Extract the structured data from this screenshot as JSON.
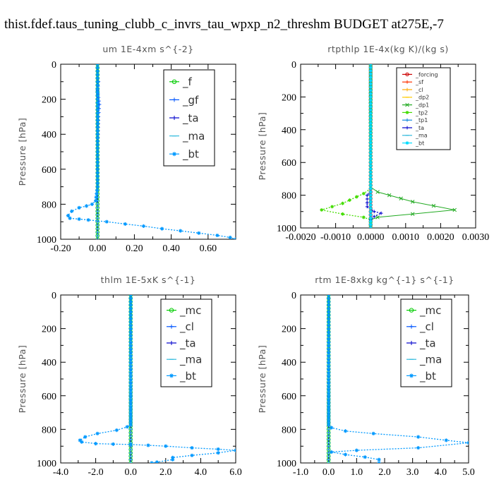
{
  "title": "thist.fdef.taus_tuning_clubb_c_invrs_tau_wpxp_n2_threshm  BUDGET at275E,-7",
  "chart_data": [
    {
      "type": "line",
      "title": "um   1E-4xm  s^{-2}",
      "ylabel": "Pressure [hPa]",
      "xlim": [
        -0.2,
        0.75
      ],
      "xticks": [
        -0.2,
        0.0,
        0.2,
        0.4,
        0.6
      ],
      "xtick_labels": [
        "-0.20",
        "0.00",
        "0.20",
        "0.40",
        "0.60"
      ],
      "ylim": [
        0,
        1000
      ],
      "yticks": [
        0,
        200,
        400,
        600,
        800,
        1000
      ],
      "ytick_labels": [
        "0",
        "200",
        "400",
        "600",
        "800",
        "1000"
      ],
      "legend_position": "top-right",
      "legend_font": 15,
      "series": [
        {
          "name": "_f",
          "color": "#00cc00",
          "marker": "o",
          "x": [
            0.0,
            0.0,
            0.0,
            0.0,
            0.0,
            0.0
          ],
          "y": [
            0,
            200,
            400,
            600,
            800,
            1000
          ]
        },
        {
          "name": "_gf",
          "color": "#0055ff",
          "marker": "+",
          "x": [
            0.005,
            0.0,
            0.01,
            0.005,
            0.0,
            0.0
          ],
          "y": [
            100,
            150,
            230,
            300,
            500,
            800
          ]
        },
        {
          "name": "_ta",
          "color": "#0000cc",
          "marker": "+",
          "x": [
            0.0,
            0.0,
            0.0,
            0.0,
            0.0
          ],
          "y": [
            0,
            300,
            600,
            800,
            1000
          ]
        },
        {
          "name": "_ma",
          "color": "#33bbdd",
          "marker": "-",
          "x": [
            0.0,
            0.0,
            0.0,
            0.0,
            0.0
          ],
          "y": [
            0,
            300,
            600,
            800,
            1000
          ]
        },
        {
          "name": "_bt",
          "color": "#0099ff",
          "marker": "*",
          "x": [
            0.0,
            0.0,
            0.0,
            -0.01,
            -0.03,
            -0.06,
            -0.1,
            -0.14,
            -0.16,
            -0.15,
            -0.1,
            -0.05,
            0.05,
            0.15,
            0.25,
            0.35,
            0.45,
            0.55,
            0.65,
            0.72,
            0.75
          ],
          "y": [
            0,
            400,
            700,
            780,
            800,
            810,
            820,
            840,
            865,
            880,
            885,
            890,
            900,
            913,
            925,
            940,
            952,
            965,
            978,
            990,
            1000
          ]
        }
      ]
    },
    {
      "type": "line",
      "title": "rtpthlp   1E-4x(kg K)/(kg s)",
      "ylabel": "Pressure [hPa]",
      "xlim": [
        -0.002,
        0.003
      ],
      "xticks": [
        -0.002,
        -0.001,
        0.0,
        0.001,
        0.002,
        0.003
      ],
      "xtick_labels": [
        "-0.0020",
        "-0.0010",
        "0.0000",
        "0.0010",
        "0.0020",
        "0.0030"
      ],
      "ylim": [
        0,
        1000
      ],
      "yticks": [
        0,
        200,
        400,
        600,
        800,
        1000
      ],
      "ytick_labels": [
        "0",
        "200",
        "400",
        "600",
        "800",
        "1000"
      ],
      "legend_position": "top-right",
      "legend_font": 8,
      "series": [
        {
          "name": "_forcing",
          "color": "#cc0000",
          "marker": "o",
          "x": [
            0.0,
            0.0,
            0.0
          ],
          "y": [
            0,
            500,
            1000
          ]
        },
        {
          "name": "_sf",
          "color": "#ff3300",
          "marker": "+",
          "x": [
            0.0,
            0.0,
            0.0
          ],
          "y": [
            0,
            500,
            1000
          ]
        },
        {
          "name": "_cl",
          "color": "#ffaa00",
          "marker": "+",
          "x": [
            0.0,
            0.0,
            0.0
          ],
          "y": [
            0,
            500,
            1000
          ]
        },
        {
          "name": "_dp2",
          "color": "#ffcc00",
          "marker": "-",
          "x": [
            0.0,
            0.0,
            0.0
          ],
          "y": [
            0,
            500,
            1000
          ]
        },
        {
          "name": "_dp1",
          "color": "#22aa22",
          "marker": "x",
          "x": [
            0.0,
            0.0,
            0.0002,
            0.0012,
            0.0024,
            0.0012,
            0.0002,
            0.0,
            0.0
          ],
          "y": [
            0,
            750,
            780,
            840,
            890,
            915,
            935,
            950,
            1000
          ]
        },
        {
          "name": "_tp2",
          "color": "#44dd00",
          "marker": "*",
          "x": [
            0.0,
            0.0,
            -0.0002,
            -0.0008,
            -0.0014,
            -0.0008,
            -0.0002,
            0.0,
            0.0
          ],
          "y": [
            0,
            760,
            790,
            850,
            890,
            915,
            935,
            950,
            1000
          ]
        },
        {
          "name": "_tp1",
          "color": "#1188dd",
          "marker": "+",
          "x": [
            0.0,
            0.0,
            0.0
          ],
          "y": [
            0,
            500,
            1000
          ]
        },
        {
          "name": "_ta",
          "color": "#0000cc",
          "marker": "+",
          "x": [
            0.0,
            0.0,
            -0.0001,
            -0.0001,
            0.0001,
            0.0003,
            0.0001,
            0.0,
            0.0
          ],
          "y": [
            0,
            780,
            800,
            870,
            900,
            910,
            930,
            950,
            1000
          ]
        },
        {
          "name": "_ma",
          "color": "#33bbdd",
          "marker": "-",
          "x": [
            0.0,
            0.0,
            0.0
          ],
          "y": [
            0,
            500,
            1000
          ]
        },
        {
          "name": "_bt",
          "color": "#00ddff",
          "marker": "*",
          "x": [
            0.0,
            0.0,
            0.0
          ],
          "y": [
            0,
            500,
            1000
          ]
        }
      ]
    },
    {
      "type": "line",
      "title": "thlm   1E-5xK  s^{-1}",
      "ylabel": "Pressure [hPa]",
      "xlim": [
        -4.0,
        6.0
      ],
      "xticks": [
        -4.0,
        -2.0,
        0.0,
        2.0,
        4.0,
        6.0
      ],
      "xtick_labels": [
        "-4.0",
        "-2.0",
        "0.0",
        "2.0",
        "4.0",
        "6.0"
      ],
      "ylim": [
        0,
        1000
      ],
      "yticks": [
        0,
        200,
        400,
        600,
        800,
        1000
      ],
      "ytick_labels": [
        "0",
        "200",
        "400",
        "600",
        "800",
        "1000"
      ],
      "legend_position": "top-right",
      "legend_font": 15,
      "series": [
        {
          "name": "_mc",
          "color": "#00cc00",
          "marker": "o",
          "x": [
            0.0,
            0.0,
            0.0,
            0.0,
            0.0,
            0.0
          ],
          "y": [
            0,
            200,
            400,
            600,
            800,
            1000
          ]
        },
        {
          "name": "_cl",
          "color": "#0055ff",
          "marker": "+",
          "x": [
            0.0,
            0.0,
            0.0
          ],
          "y": [
            0,
            500,
            1000
          ]
        },
        {
          "name": "_ta",
          "color": "#0000cc",
          "marker": "+",
          "x": [
            0.0,
            0.0,
            0.0
          ],
          "y": [
            0,
            500,
            1000
          ]
        },
        {
          "name": "_ma",
          "color": "#33bbdd",
          "marker": "-",
          "x": [
            0.0,
            0.0,
            0.0
          ],
          "y": [
            0,
            500,
            1000
          ]
        },
        {
          "name": "_bt",
          "color": "#0099ff",
          "marker": "*",
          "x": [
            0.0,
            0.0,
            -0.2,
            -0.8,
            -1.9,
            -2.6,
            -2.9,
            -2.8,
            -2.0,
            -1.0,
            0.0,
            1.0,
            2.0,
            3.5,
            5.0,
            6.0,
            5.0,
            3.5,
            2.4,
            2.4,
            1.5,
            1.2
          ],
          "y": [
            0,
            770,
            785,
            805,
            825,
            845,
            865,
            875,
            885,
            888,
            890,
            895,
            900,
            910,
            918,
            925,
            940,
            955,
            968,
            980,
            995,
            1000
          ]
        }
      ]
    },
    {
      "type": "line",
      "title": "rtm   1E-8xkg  kg^{-1}  s^{-1}",
      "ylabel": "Pressure [hPa]",
      "xlim": [
        -1.0,
        5.0
      ],
      "xticks": [
        -1.0,
        0.0,
        1.0,
        2.0,
        3.0,
        4.0,
        5.0
      ],
      "xtick_labels": [
        "-1.0",
        "0.0",
        "1.0",
        "2.0",
        "3.0",
        "4.0",
        "5.0"
      ],
      "ylim": [
        0,
        1000
      ],
      "yticks": [
        0,
        200,
        400,
        600,
        800,
        1000
      ],
      "ytick_labels": [
        "0",
        "200",
        "400",
        "600",
        "800",
        "1000"
      ],
      "legend_position": "top-right",
      "legend_font": 15,
      "series": [
        {
          "name": "_mc",
          "color": "#00cc00",
          "marker": "o",
          "x": [
            0.0,
            0.0,
            0.0,
            0.0,
            0.0,
            0.0
          ],
          "y": [
            0,
            200,
            400,
            600,
            800,
            1000
          ]
        },
        {
          "name": "_cl",
          "color": "#0055ff",
          "marker": "+",
          "x": [
            0.0,
            0.0,
            0.0
          ],
          "y": [
            0,
            500,
            1000
          ]
        },
        {
          "name": "_ta",
          "color": "#0000cc",
          "marker": "+",
          "x": [
            0.0,
            0.0,
            0.0
          ],
          "y": [
            0,
            500,
            1000
          ]
        },
        {
          "name": "_ma",
          "color": "#33bbdd",
          "marker": "-",
          "x": [
            0.0,
            0.0,
            0.0
          ],
          "y": [
            0,
            500,
            1000
          ]
        },
        {
          "name": "_bt",
          "color": "#0099ff",
          "marker": "*",
          "x": [
            0.0,
            0.0,
            0.1,
            0.6,
            1.6,
            3.2,
            4.2,
            5.0,
            3.2,
            1.0,
            0.1,
            0.6,
            1.3,
            1.8,
            1.8
          ],
          "y": [
            0,
            770,
            790,
            810,
            825,
            845,
            865,
            880,
            910,
            925,
            935,
            950,
            965,
            980,
            1000
          ]
        }
      ]
    }
  ]
}
